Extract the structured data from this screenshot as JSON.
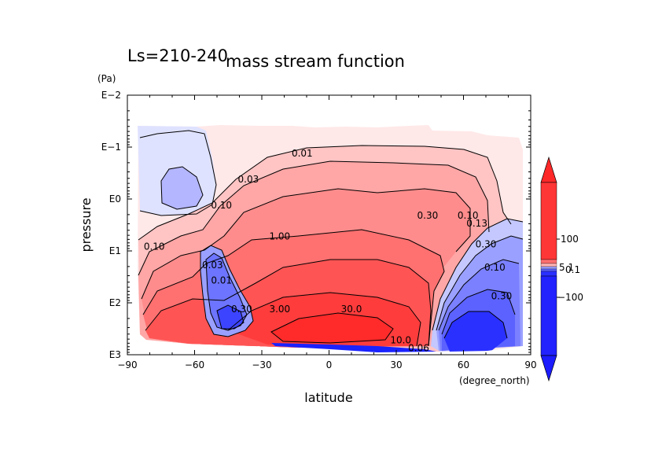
{
  "chart_data": {
    "type": "contour",
    "title": "mass stream function",
    "subtitle": "Ls=210-240",
    "xlabel": "latitude",
    "xunits": "(degree_north)",
    "ylabel": "pressure",
    "yunits": "(Pa)",
    "xlim": [
      -90,
      90
    ],
    "xticks": [
      -90,
      -60,
      -30,
      0,
      30,
      60,
      90
    ],
    "xtick_labels": [
      "−90",
      "−60",
      "−30",
      "0",
      "30",
      "60",
      "90"
    ],
    "ylog": true,
    "ylim_log10": [
      -2,
      3
    ],
    "yticks_log10": [
      -2,
      -1,
      0,
      1,
      2,
      3
    ],
    "ytick_labels": [
      "E−2",
      "E−1",
      "E0",
      "E1",
      "E2",
      "E3"
    ],
    "contour_labels": [
      {
        "text": "0.01",
        "lat": -12,
        "logp": -0.82
      },
      {
        "text": "0.03",
        "lat": -36,
        "logp": -0.32
      },
      {
        "text": "0.10",
        "lat": -48,
        "logp": 0.18
      },
      {
        "text": "0.10",
        "lat": -78,
        "logp": 0.98
      },
      {
        "text": "1.00",
        "lat": -22,
        "logp": 0.78
      },
      {
        "text": "0.30",
        "lat": 44,
        "logp": 0.38
      },
      {
        "text": "0.10",
        "lat": 62,
        "logp": 0.38
      },
      {
        "text": "0.30",
        "lat": -39,
        "logp": 2.18
      },
      {
        "text": "3.00",
        "lat": -22,
        "logp": 2.18
      },
      {
        "text": "30.0",
        "lat": 10,
        "logp": 2.18
      },
      {
        "text": "10.0",
        "lat": 32,
        "logp": 2.78
      },
      {
        "text": "0.06",
        "lat": 40,
        "logp": 2.93
      },
      {
        "text": "0.10",
        "lat": 74,
        "logp": 1.38
      },
      {
        "text": "0.30",
        "lat": 77,
        "logp": 1.93
      },
      {
        "text": "0.13",
        "lat": 66,
        "logp": 0.53
      },
      {
        "text": "0.30",
        "lat": 70,
        "logp": 0.93
      },
      {
        "text": "0.03",
        "lat": -52,
        "logp": 1.33
      },
      {
        "text": "0.01",
        "lat": -48,
        "logp": 1.63
      }
    ],
    "colorbar": {
      "ticks": [
        "100",
        "5.1",
        "0.1",
        "−100"
      ],
      "colors_positive": [
        "#ff2020",
        "#ff4444",
        "#ff6060",
        "#ff8080",
        "#ffa0a0",
        "#ffc0c0",
        "#ffe6e6"
      ],
      "colors_negative": [
        "#e0e0ff",
        "#c0c0ff",
        "#a0a0ff",
        "#8080ff",
        "#6060ff",
        "#4040ff",
        "#2020ff"
      ]
    }
  }
}
